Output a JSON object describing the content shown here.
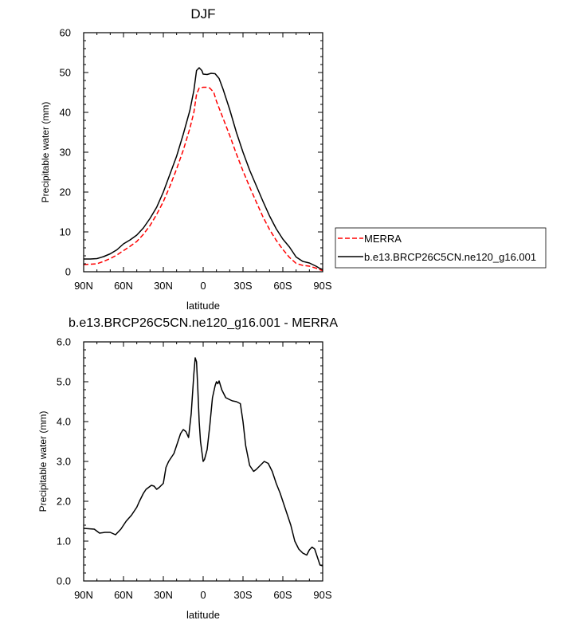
{
  "chart_data": [
    {
      "type": "line",
      "title": "DJF",
      "xlabel": "latitude",
      "ylabel": "Precipitable water (mm)",
      "xlim": [
        -90,
        90
      ],
      "ylim": [
        0,
        60
      ],
      "x_ticks": [
        -90,
        -60,
        -30,
        0,
        30,
        60,
        90
      ],
      "x_tick_labels": [
        "90N",
        "60N",
        "30N",
        "0",
        "30S",
        "60S",
        "90S"
      ],
      "y_ticks": [
        0,
        10,
        20,
        30,
        40,
        50,
        60
      ],
      "y_tick_labels": [
        "0",
        "10",
        "20",
        "30",
        "40",
        "50",
        "60"
      ],
      "grid": false,
      "legend_position": "right",
      "series": [
        {
          "name": "MERRA",
          "color": "#ff0000",
          "dash": "dashed",
          "x": [
            -90,
            -80,
            -75,
            -70,
            -65,
            -60,
            -55,
            -50,
            -45,
            -40,
            -35,
            -30,
            -25,
            -20,
            -15,
            -10,
            -7,
            -5,
            -3,
            0,
            3,
            5,
            8,
            10,
            15,
            20,
            25,
            30,
            35,
            40,
            45,
            50,
            55,
            60,
            65,
            70,
            75,
            80,
            85,
            88,
            90
          ],
          "y": [
            1.8,
            2.0,
            2.6,
            3.3,
            4.2,
            5.3,
            6.4,
            7.6,
            9.4,
            11.6,
            14.4,
            17.6,
            21.5,
            25.8,
            30.5,
            36.0,
            40.0,
            44.5,
            46.1,
            46.3,
            46.3,
            46.1,
            45.0,
            42.8,
            38.5,
            34.2,
            29.6,
            25.3,
            21.3,
            17.5,
            13.8,
            10.6,
            7.9,
            5.6,
            3.6,
            2.1,
            1.6,
            1.4,
            0.9,
            0.5,
            0.3
          ]
        },
        {
          "name": "b.e13.BRCP26C5CN.ne120_g16.001",
          "color": "#000000",
          "dash": "solid",
          "x": [
            -90,
            -85,
            -80,
            -75,
            -70,
            -65,
            -60,
            -55,
            -50,
            -45,
            -40,
            -35,
            -30,
            -25,
            -20,
            -15,
            -10,
            -7,
            -5,
            -3,
            -1,
            0,
            3,
            6,
            9,
            12,
            15,
            20,
            25,
            30,
            35,
            40,
            45,
            50,
            55,
            60,
            65,
            70,
            75,
            80,
            85,
            88,
            90
          ],
          "y": [
            3.2,
            3.2,
            3.3,
            3.8,
            4.5,
            5.5,
            7.0,
            8.0,
            9.2,
            11.0,
            13.4,
            16.2,
            20.0,
            24.5,
            29.0,
            34.5,
            40.5,
            45.5,
            50.5,
            51.2,
            50.5,
            49.6,
            49.5,
            49.8,
            49.7,
            48.5,
            45.8,
            40.7,
            35.0,
            30.0,
            25.5,
            21.6,
            17.7,
            14.0,
            10.8,
            8.2,
            6.2,
            3.7,
            2.6,
            2.2,
            1.4,
            0.8,
            0.6
          ]
        }
      ]
    },
    {
      "type": "line",
      "title": "b.e13.BRCP26C5CN.ne120_g16.001 - MERRA",
      "xlabel": "latitude",
      "ylabel": "Precipitable water (mm)",
      "xlim": [
        -90,
        90
      ],
      "ylim": [
        0,
        6
      ],
      "x_ticks": [
        -90,
        -60,
        -30,
        0,
        30,
        60,
        90
      ],
      "x_tick_labels": [
        "90N",
        "60N",
        "30N",
        "0",
        "30S",
        "60S",
        "90S"
      ],
      "y_ticks": [
        0,
        1,
        2,
        3,
        4,
        5,
        6
      ],
      "y_tick_labels": [
        "0.0",
        "1.0",
        "2.0",
        "3.0",
        "4.0",
        "5.0",
        "6.0"
      ],
      "grid": false,
      "series": [
        {
          "color": "#000000",
          "dash": "solid",
          "x": [
            -90,
            -82,
            -78,
            -74,
            -70,
            -66,
            -62,
            -58,
            -54,
            -50,
            -48,
            -45,
            -43,
            -41,
            -39,
            -37,
            -35,
            -33,
            -30,
            -28,
            -26,
            -22,
            -20,
            -17,
            -15,
            -13,
            -11,
            -9,
            -7,
            -6,
            -5,
            -4,
            -3,
            -2,
            0,
            1,
            3,
            5,
            7,
            9,
            10,
            11,
            12,
            14,
            17,
            20,
            22,
            25,
            28,
            30,
            32,
            35,
            38,
            40,
            43,
            46,
            49,
            52,
            55,
            58,
            62,
            66,
            69,
            72,
            75,
            78,
            80,
            82,
            84,
            86,
            88,
            90
          ],
          "y": [
            1.32,
            1.3,
            1.2,
            1.22,
            1.22,
            1.16,
            1.3,
            1.5,
            1.65,
            1.85,
            2.0,
            2.2,
            2.3,
            2.35,
            2.4,
            2.38,
            2.3,
            2.35,
            2.45,
            2.85,
            3.0,
            3.2,
            3.4,
            3.7,
            3.8,
            3.75,
            3.6,
            4.2,
            5.2,
            5.6,
            5.5,
            4.8,
            4.0,
            3.5,
            3.0,
            3.05,
            3.3,
            3.9,
            4.6,
            4.9,
            5.0,
            4.95,
            5.02,
            4.8,
            4.6,
            4.55,
            4.52,
            4.5,
            4.45,
            4.0,
            3.4,
            2.9,
            2.75,
            2.8,
            2.9,
            3.0,
            2.95,
            2.75,
            2.45,
            2.2,
            1.8,
            1.4,
            1.0,
            0.8,
            0.7,
            0.65,
            0.78,
            0.85,
            0.8,
            0.6,
            0.4,
            0.38
          ]
        }
      ]
    }
  ]
}
